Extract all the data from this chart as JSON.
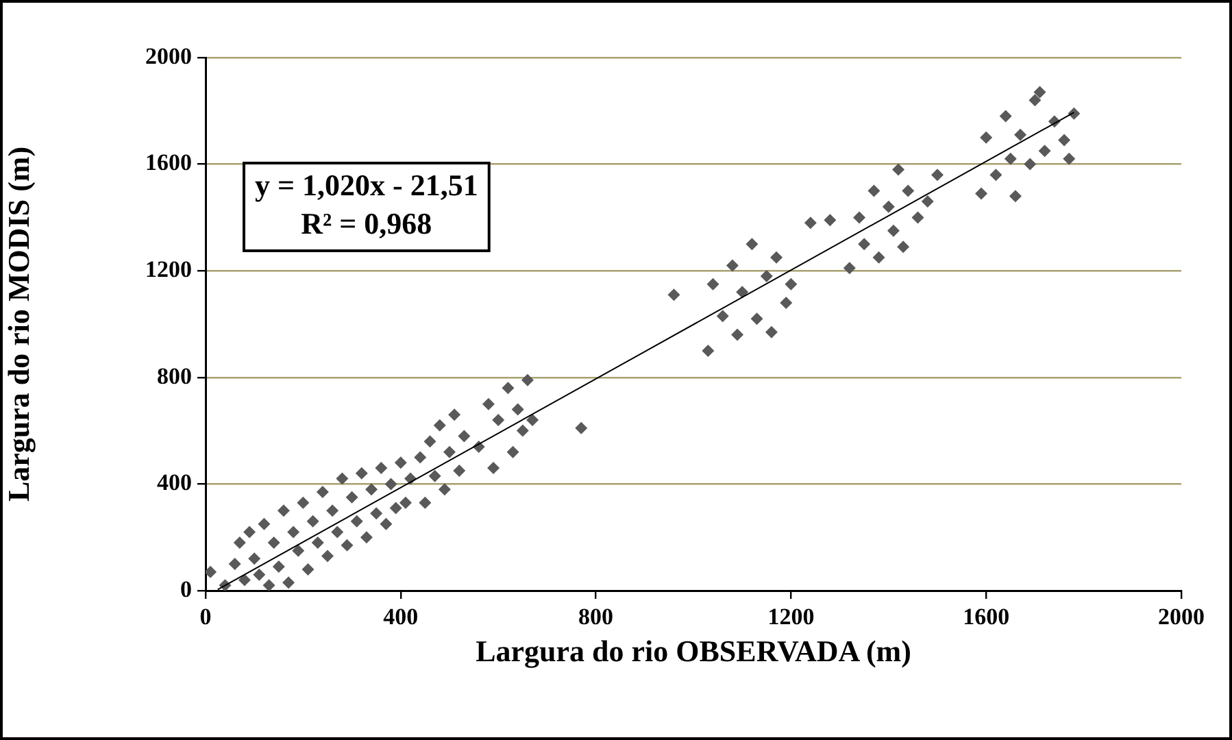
{
  "chart_data": {
    "type": "scatter",
    "xlabel": "Largura do rio OBSERVADA (m)",
    "ylabel": "Largura do rio MODIS (m)",
    "annotations": [
      "y = 1,020x - 21,51",
      "R² = 0,968"
    ],
    "xlim": [
      0,
      2000
    ],
    "xticks": [
      0,
      400,
      800,
      1200,
      1600,
      2000
    ],
    "ylim": [
      0,
      2000
    ],
    "yticks": [
      0,
      400,
      800,
      1200,
      1600,
      2000
    ],
    "grid": "y",
    "legend": false,
    "series": [
      {
        "type": "scatter",
        "marker": "diamond",
        "color": "#595959",
        "x": [
          10,
          40,
          60,
          70,
          80,
          90,
          100,
          110,
          120,
          130,
          140,
          150,
          160,
          170,
          180,
          190,
          200,
          210,
          220,
          230,
          240,
          250,
          260,
          270,
          280,
          290,
          300,
          310,
          320,
          330,
          340,
          350,
          360,
          370,
          380,
          390,
          400,
          410,
          420,
          440,
          450,
          460,
          470,
          480,
          490,
          500,
          510,
          520,
          530,
          560,
          580,
          590,
          600,
          620,
          630,
          640,
          650,
          660,
          670,
          770,
          960,
          1030,
          1040,
          1060,
          1080,
          1090,
          1100,
          1120,
          1130,
          1150,
          1160,
          1170,
          1190,
          1200,
          1240,
          1280,
          1320,
          1340,
          1350,
          1370,
          1380,
          1400,
          1410,
          1420,
          1430,
          1440,
          1460,
          1480,
          1500,
          1590,
          1600,
          1620,
          1640,
          1650,
          1660,
          1670,
          1690,
          1700,
          1720,
          1740,
          1760,
          1770,
          1780,
          1710
        ],
        "values": [
          70,
          20,
          100,
          180,
          40,
          220,
          120,
          60,
          250,
          20,
          180,
          90,
          300,
          30,
          220,
          150,
          330,
          80,
          260,
          180,
          370,
          130,
          300,
          220,
          420,
          170,
          350,
          260,
          440,
          200,
          380,
          290,
          460,
          250,
          400,
          310,
          480,
          330,
          420,
          500,
          330,
          560,
          430,
          620,
          380,
          520,
          660,
          450,
          580,
          540,
          700,
          460,
          640,
          760,
          520,
          680,
          600,
          790,
          640,
          610,
          1110,
          900,
          1150,
          1030,
          1220,
          960,
          1120,
          1300,
          1020,
          1180,
          970,
          1250,
          1080,
          1150,
          1380,
          1390,
          1210,
          1400,
          1300,
          1500,
          1250,
          1440,
          1350,
          1580,
          1290,
          1500,
          1400,
          1460,
          1560,
          1490,
          1700,
          1560,
          1780,
          1620,
          1480,
          1710,
          1600,
          1840,
          1650,
          1760,
          1690,
          1620,
          1790,
          1870
        ]
      },
      {
        "type": "line",
        "marker": "none",
        "color": "#000000",
        "x": [
          25,
          1780
        ],
        "values": [
          4,
          1794
        ]
      }
    ]
  }
}
